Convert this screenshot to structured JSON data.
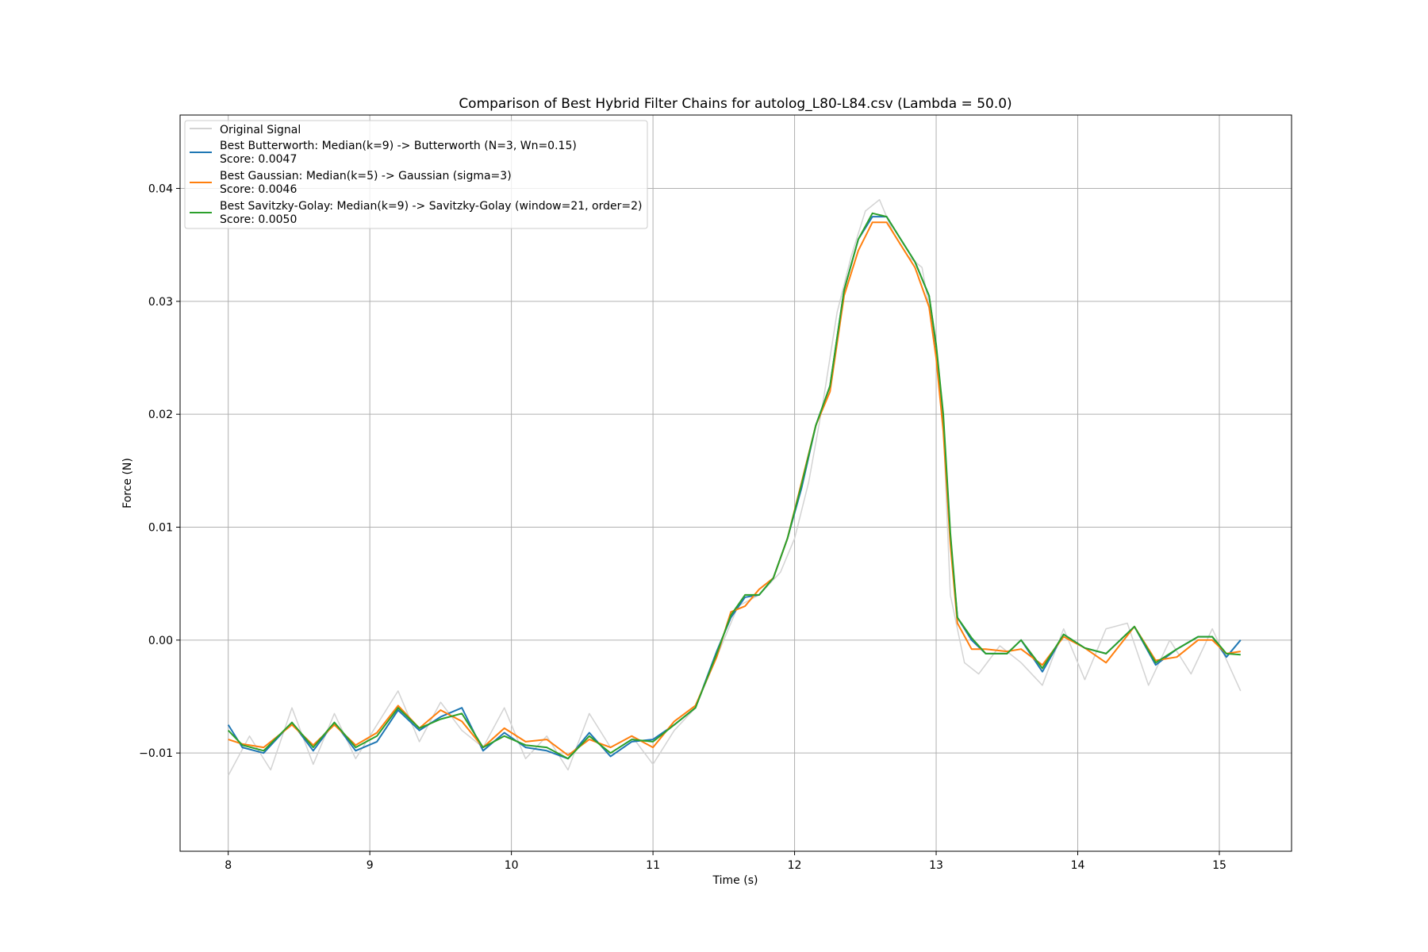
{
  "chart_data": {
    "type": "line",
    "title": "Comparison of Best Hybrid Filter Chains for autolog_L80-L84.csv (Lambda = 50.0)",
    "xlabel": "Time (s)",
    "ylabel": "Force (N)",
    "xlim": [
      7.66,
      15.51
    ],
    "ylim": [
      -0.0187,
      0.0465
    ],
    "xticks": [
      8,
      9,
      10,
      11,
      12,
      13,
      14,
      15
    ],
    "xtick_labels": [
      "8",
      "9",
      "10",
      "11",
      "12",
      "13",
      "14",
      "15"
    ],
    "yticks": [
      -0.01,
      0.0,
      0.01,
      0.02,
      0.03,
      0.04
    ],
    "ytick_labels": [
      "−0.01",
      "0.00",
      "0.01",
      "0.02",
      "0.03",
      "0.04"
    ],
    "grid": true,
    "legend_position": "upper-left",
    "series": [
      {
        "name": "Original Signal",
        "color": "#d3d3d3",
        "x": [
          8.0,
          8.15,
          8.3,
          8.45,
          8.6,
          8.75,
          8.9,
          9.05,
          9.2,
          9.35,
          9.5,
          9.65,
          9.8,
          9.95,
          10.1,
          10.25,
          10.4,
          10.55,
          10.7,
          10.85,
          11.0,
          11.15,
          11.3,
          11.45,
          11.6,
          11.75,
          11.9,
          12.0,
          12.1,
          12.2,
          12.3,
          12.4,
          12.5,
          12.6,
          12.7,
          12.8,
          12.9,
          13.0,
          13.05,
          13.1,
          13.2,
          13.3,
          13.45,
          13.6,
          13.75,
          13.9,
          14.05,
          14.2,
          14.35,
          14.5,
          14.65,
          14.8,
          14.95,
          15.15
        ],
        "y": [
          -0.012,
          -0.0085,
          -0.0115,
          -0.006,
          -0.011,
          -0.0065,
          -0.0105,
          -0.0075,
          -0.0045,
          -0.009,
          -0.0055,
          -0.008,
          -0.0095,
          -0.006,
          -0.0105,
          -0.0085,
          -0.0115,
          -0.0065,
          -0.0095,
          -0.0085,
          -0.011,
          -0.008,
          -0.006,
          -0.0015,
          0.003,
          0.004,
          0.006,
          0.009,
          0.014,
          0.021,
          0.029,
          0.034,
          0.038,
          0.039,
          0.036,
          0.034,
          0.033,
          0.026,
          0.019,
          0.004,
          -0.002,
          -0.003,
          -0.0005,
          -0.002,
          -0.004,
          0.001,
          -0.0035,
          0.001,
          0.0015,
          -0.004,
          0.0,
          -0.003,
          0.001,
          -0.0045
        ]
      },
      {
        "name": "Best Butterworth: Median(k=9) -> Butterworth (N=3, Wn=0.15)",
        "score_label": "Score: 0.0047",
        "color": "#1f77b4",
        "x": [
          8.0,
          8.1,
          8.25,
          8.45,
          8.6,
          8.75,
          8.9,
          9.05,
          9.2,
          9.35,
          9.5,
          9.65,
          9.8,
          9.95,
          10.1,
          10.25,
          10.4,
          10.55,
          10.7,
          10.85,
          11.0,
          11.15,
          11.3,
          11.45,
          11.55,
          11.65,
          11.75,
          11.85,
          11.95,
          12.05,
          12.15,
          12.25,
          12.35,
          12.45,
          12.55,
          12.65,
          12.75,
          12.85,
          12.95,
          13.0,
          13.05,
          13.1,
          13.15,
          13.25,
          13.35,
          13.5,
          13.6,
          13.75,
          13.9,
          14.05,
          14.2,
          14.4,
          14.55,
          14.7,
          14.85,
          14.95,
          15.05,
          15.15
        ],
        "y": [
          -0.0075,
          -0.0095,
          -0.01,
          -0.0073,
          -0.0098,
          -0.0073,
          -0.0098,
          -0.009,
          -0.0062,
          -0.008,
          -0.0068,
          -0.006,
          -0.0098,
          -0.0082,
          -0.0095,
          -0.0098,
          -0.0105,
          -0.0082,
          -0.0103,
          -0.009,
          -0.0088,
          -0.0075,
          -0.006,
          -0.001,
          0.002,
          0.0038,
          0.004,
          0.0055,
          0.009,
          0.0135,
          0.019,
          0.0225,
          0.031,
          0.0355,
          0.0375,
          0.0375,
          0.0355,
          0.0335,
          0.0305,
          0.026,
          0.0195,
          0.009,
          0.002,
          0.0,
          -0.0012,
          -0.0012,
          0.0,
          -0.0028,
          0.0005,
          -0.0007,
          -0.0012,
          0.0012,
          -0.0022,
          -0.0008,
          0.0003,
          0.0003,
          -0.0015,
          0.0
        ]
      },
      {
        "name": "Best Gaussian: Median(k=5) -> Gaussian (sigma=3)",
        "score_label": "Score: 0.0046",
        "color": "#ff7f0e",
        "x": [
          8.0,
          8.1,
          8.25,
          8.45,
          8.6,
          8.75,
          8.9,
          9.05,
          9.2,
          9.35,
          9.5,
          9.65,
          9.8,
          9.95,
          10.1,
          10.25,
          10.4,
          10.55,
          10.7,
          10.85,
          11.0,
          11.15,
          11.3,
          11.45,
          11.55,
          11.65,
          11.75,
          11.85,
          11.95,
          12.05,
          12.15,
          12.25,
          12.35,
          12.45,
          12.55,
          12.65,
          12.75,
          12.85,
          12.95,
          13.0,
          13.05,
          13.1,
          13.15,
          13.25,
          13.35,
          13.5,
          13.6,
          13.75,
          13.9,
          14.05,
          14.2,
          14.4,
          14.55,
          14.7,
          14.85,
          14.95,
          15.05,
          15.15
        ],
        "y": [
          -0.0088,
          -0.0092,
          -0.0095,
          -0.0075,
          -0.0093,
          -0.0075,
          -0.0093,
          -0.0082,
          -0.0058,
          -0.0078,
          -0.0062,
          -0.0072,
          -0.0095,
          -0.0078,
          -0.009,
          -0.0088,
          -0.0102,
          -0.0088,
          -0.0095,
          -0.0085,
          -0.0095,
          -0.0072,
          -0.0058,
          -0.0015,
          0.0025,
          0.003,
          0.0045,
          0.0055,
          0.009,
          0.014,
          0.019,
          0.022,
          0.0305,
          0.0345,
          0.037,
          0.037,
          0.035,
          0.033,
          0.0295,
          0.025,
          0.0185,
          0.0085,
          0.0015,
          -0.0008,
          -0.0008,
          -0.001,
          -0.0008,
          -0.0022,
          0.0003,
          -0.0007,
          -0.002,
          0.0012,
          -0.0018,
          -0.0015,
          0.0,
          0.0,
          -0.0012,
          -0.001
        ]
      },
      {
        "name": "Best Savitzky-Golay: Median(k=9) -> Savitzky-Golay (window=21, order=2)",
        "score_label": "Score: 0.0050",
        "color": "#2ca02c",
        "x": [
          8.0,
          8.1,
          8.25,
          8.45,
          8.6,
          8.75,
          8.9,
          9.05,
          9.2,
          9.35,
          9.5,
          9.65,
          9.8,
          9.95,
          10.1,
          10.25,
          10.4,
          10.55,
          10.7,
          10.85,
          11.0,
          11.15,
          11.3,
          11.45,
          11.55,
          11.65,
          11.75,
          11.85,
          11.95,
          12.05,
          12.15,
          12.25,
          12.35,
          12.45,
          12.55,
          12.65,
          12.75,
          12.85,
          12.95,
          13.0,
          13.05,
          13.1,
          13.15,
          13.25,
          13.35,
          13.5,
          13.6,
          13.75,
          13.9,
          14.05,
          14.2,
          14.4,
          14.55,
          14.7,
          14.85,
          14.95,
          15.05,
          15.15
        ],
        "y": [
          -0.008,
          -0.0093,
          -0.0098,
          -0.0073,
          -0.0095,
          -0.0073,
          -0.0095,
          -0.0085,
          -0.006,
          -0.0078,
          -0.007,
          -0.0065,
          -0.0095,
          -0.0085,
          -0.0093,
          -0.0095,
          -0.0105,
          -0.0085,
          -0.01,
          -0.0088,
          -0.009,
          -0.0075,
          -0.006,
          -0.0012,
          0.0022,
          0.004,
          0.004,
          0.0055,
          0.009,
          0.0138,
          0.019,
          0.0225,
          0.031,
          0.0355,
          0.0378,
          0.0375,
          0.0355,
          0.0335,
          0.0305,
          0.0262,
          0.02,
          0.0095,
          0.002,
          0.0002,
          -0.0012,
          -0.0012,
          0.0,
          -0.0025,
          0.0005,
          -0.0007,
          -0.0012,
          0.0012,
          -0.002,
          -0.0008,
          0.0003,
          0.0003,
          -0.0012,
          -0.0013
        ]
      }
    ]
  }
}
